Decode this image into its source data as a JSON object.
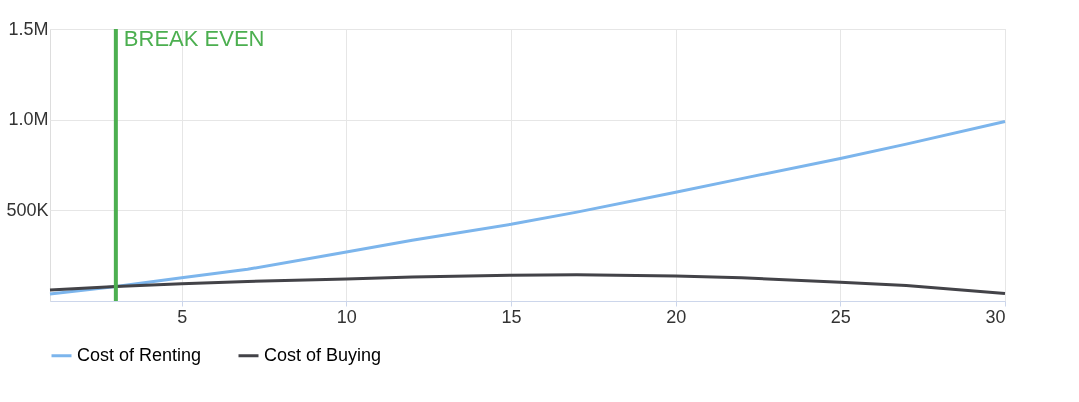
{
  "chart_data": {
    "type": "line",
    "x": [
      1,
      3,
      5,
      7,
      10,
      12,
      15,
      17,
      20,
      22,
      25,
      27,
      30
    ],
    "series": [
      {
        "name": "Cost of Renting",
        "color": "#7cb5ec",
        "values": [
          38000,
          80000,
          128000,
          175000,
          270000,
          335000,
          423000,
          490000,
          600000,
          675000,
          786000,
          865000,
          990000
        ]
      },
      {
        "name": "Cost of Buying",
        "color": "#434348",
        "values": [
          60000,
          80000,
          95000,
          108000,
          122000,
          132000,
          142000,
          145000,
          138000,
          128000,
          104000,
          85000,
          42000
        ]
      }
    ],
    "xlim": [
      1,
      30
    ],
    "xticks": [
      5,
      10,
      15,
      20,
      25,
      30
    ],
    "ylim": [
      0,
      1500000
    ],
    "yticks": [
      {
        "value": 0,
        "label": null
      },
      {
        "value": 500000,
        "label": "500K"
      },
      {
        "value": 1000000,
        "label": "1.0M"
      },
      {
        "value": 1500000,
        "label": "1.5M"
      }
    ],
    "ref_lines": [
      {
        "axis": "x",
        "value": 3,
        "label": "BREAK EVEN",
        "color": "#4caf50"
      }
    ],
    "grid": true,
    "legend": "bottom",
    "marker": "none",
    "line_style": "solid"
  }
}
